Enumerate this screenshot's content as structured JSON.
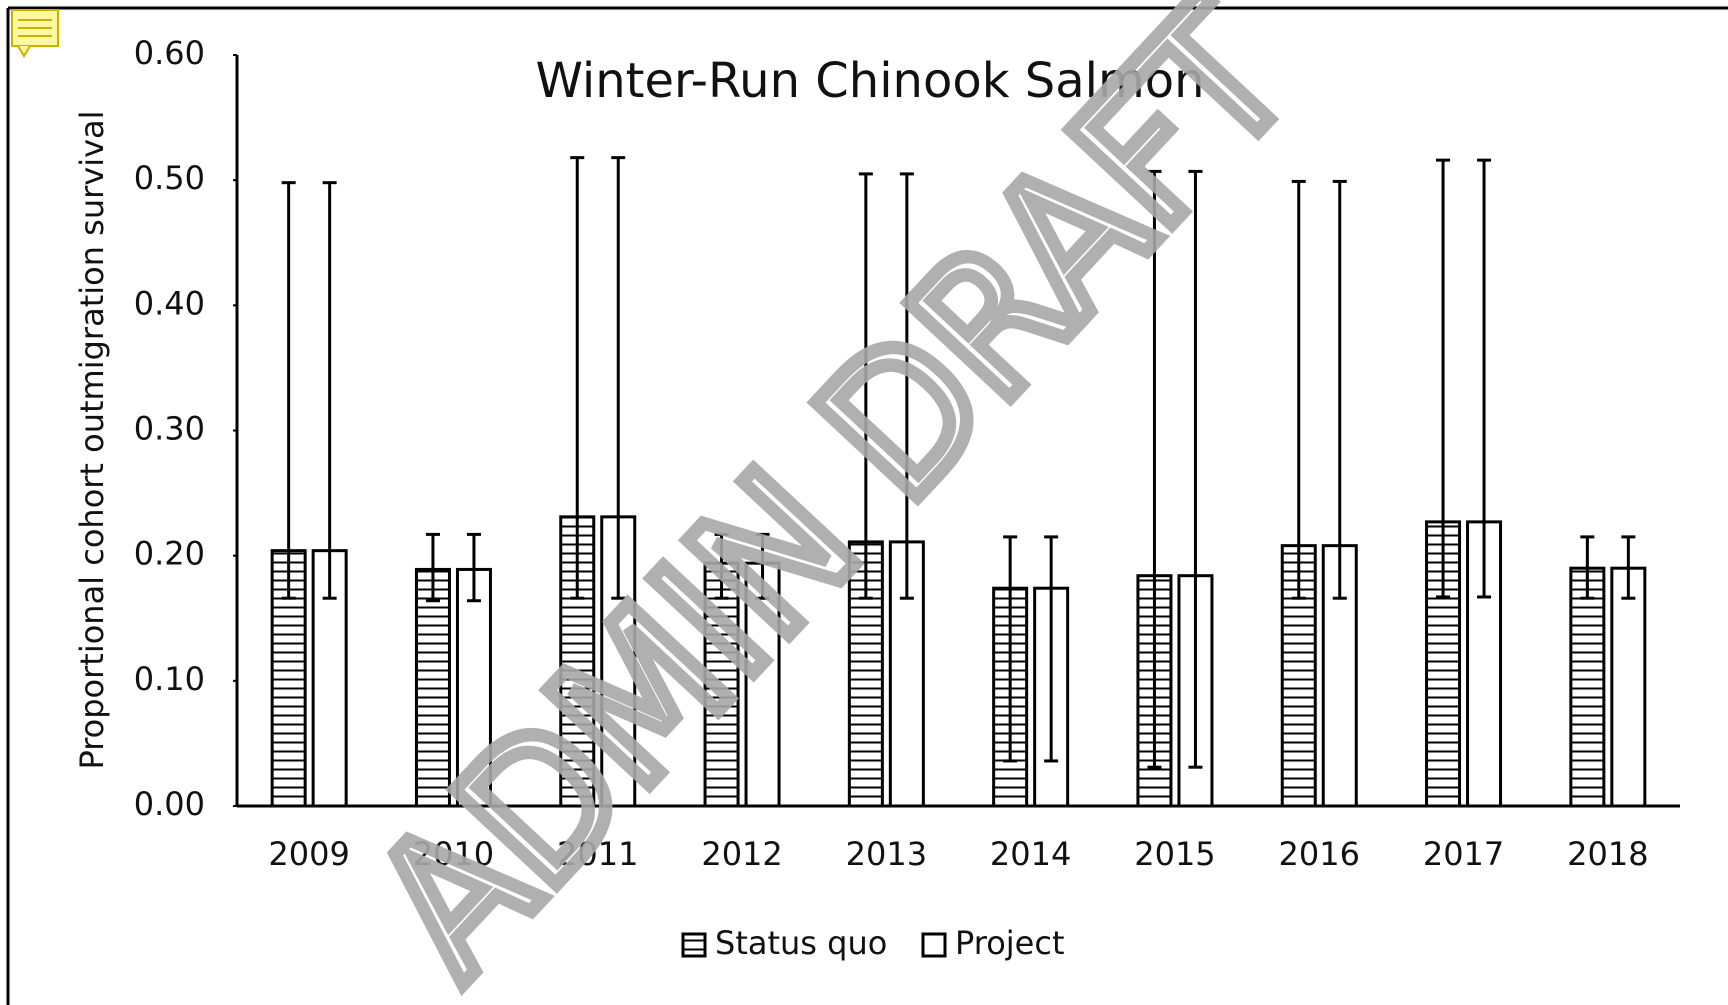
{
  "chart_data": {
    "type": "bar",
    "title": "Winter-Run Chinook Salmon",
    "ylabel": "Proportional cohort outmigration survival",
    "watermark": "ADMIN DRAFT",
    "categories": [
      "2009",
      "2010",
      "2011",
      "2012",
      "2013",
      "2014",
      "2015",
      "2016",
      "2017",
      "2018"
    ],
    "series": [
      {
        "name": "Status quo",
        "color": "#000000",
        "hatch": true,
        "values": [
          0.204,
          0.189,
          0.231,
          0.194,
          0.211,
          0.174,
          0.184,
          0.208,
          0.227,
          0.19
        ],
        "lower": [
          0.166,
          0.164,
          0.166,
          0.166,
          0.166,
          0.036,
          0.031,
          0.166,
          0.167,
          0.166
        ],
        "upper": [
          0.498,
          0.217,
          0.518,
          0.217,
          0.505,
          0.215,
          0.507,
          0.499,
          0.516,
          0.215
        ]
      },
      {
        "name": "Project",
        "color": "#000000",
        "hatch": false,
        "values": [
          0.204,
          0.189,
          0.231,
          0.194,
          0.211,
          0.174,
          0.184,
          0.208,
          0.227,
          0.19
        ],
        "lower": [
          0.166,
          0.164,
          0.166,
          0.166,
          0.166,
          0.036,
          0.031,
          0.166,
          0.167,
          0.166
        ],
        "upper": [
          0.498,
          0.217,
          0.518,
          0.217,
          0.505,
          0.215,
          0.507,
          0.499,
          0.516,
          0.215
        ]
      }
    ],
    "ylim": [
      0,
      0.6
    ],
    "yticks": [
      {
        "value": 0,
        "label": "0.00"
      },
      {
        "value": 0.1,
        "label": "0.10"
      },
      {
        "value": 0.2,
        "label": "0.20"
      },
      {
        "value": 0.3,
        "label": "0.30"
      },
      {
        "value": 0.4,
        "label": "0.40"
      },
      {
        "value": 0.5,
        "label": "0.50"
      },
      {
        "value": 0.6,
        "label": "0.60"
      }
    ],
    "grid": false,
    "legend": "bottom"
  }
}
